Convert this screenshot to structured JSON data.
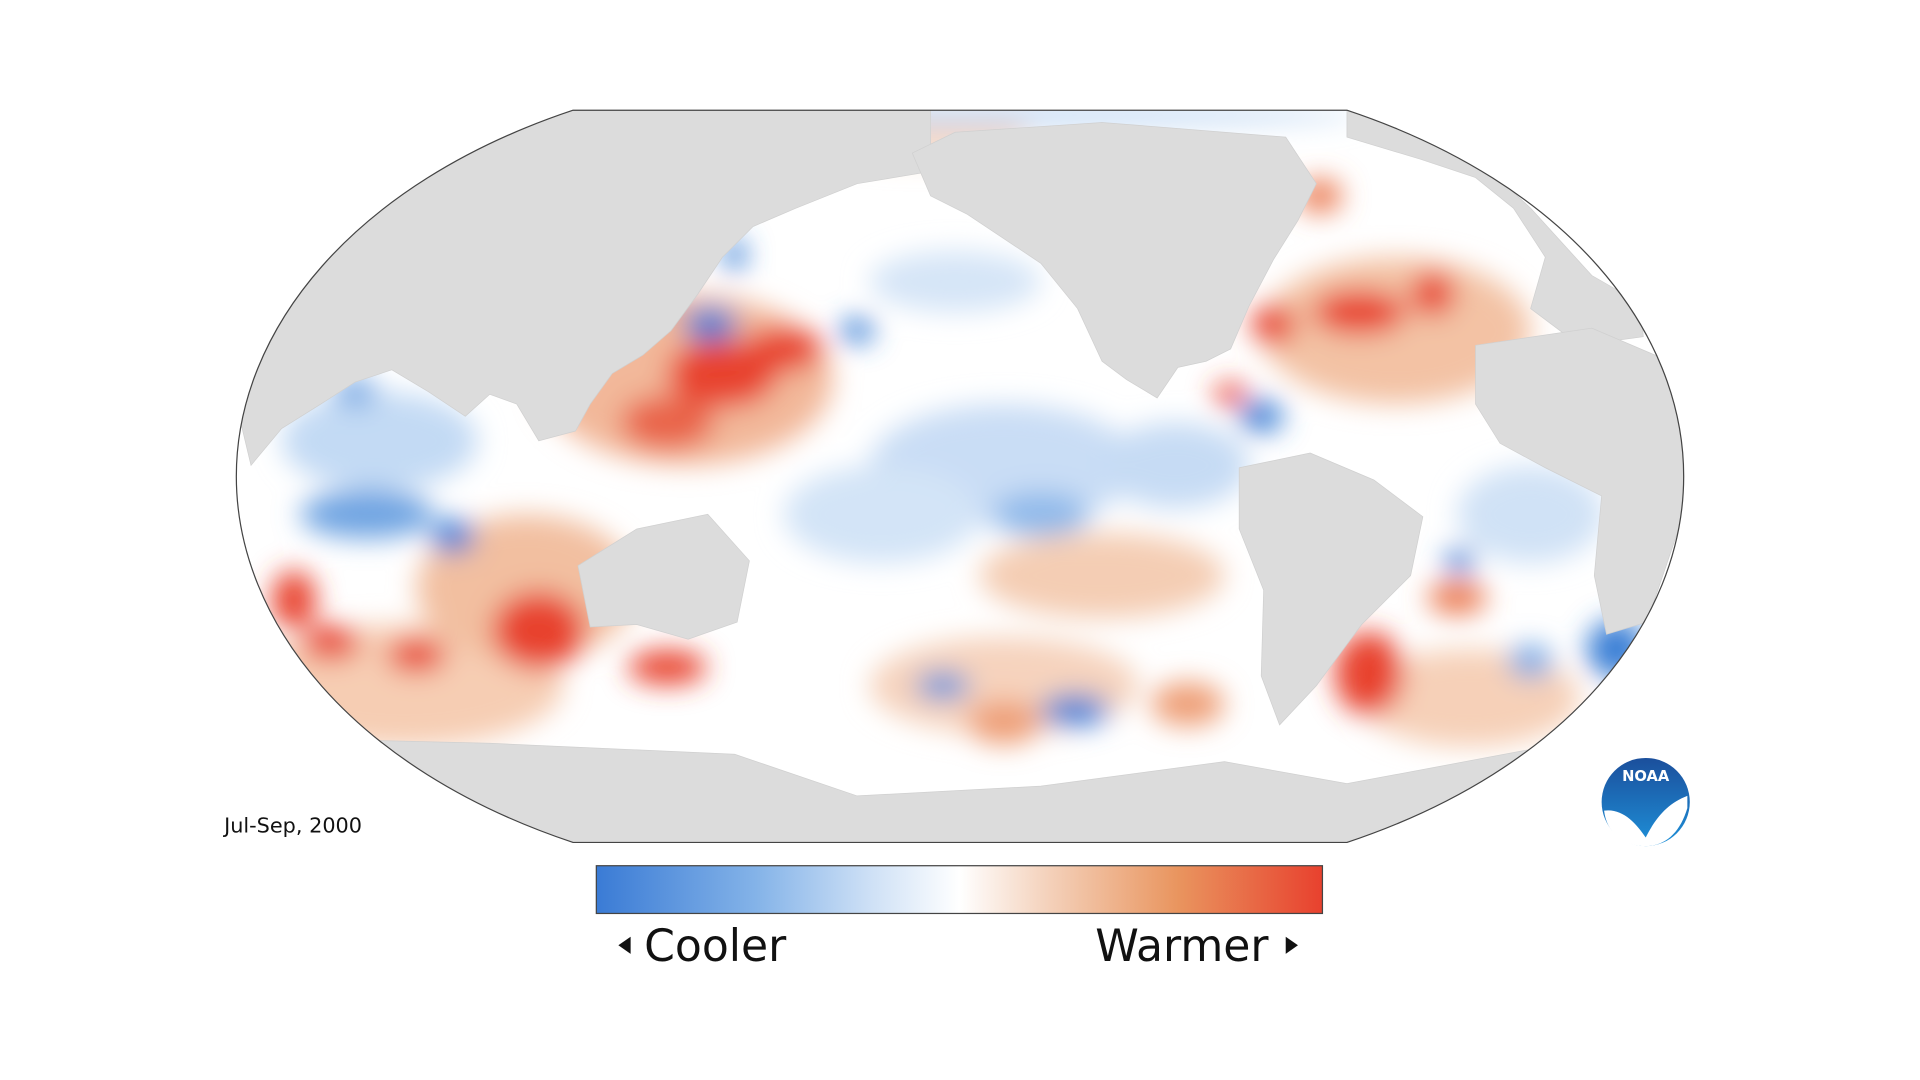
{
  "map": {
    "period": "Jul-Sep, 2000"
  },
  "legend": {
    "low_label": "Cooler",
    "high_label": "Warmer"
  },
  "logo": {
    "text": "NOAA"
  }
}
